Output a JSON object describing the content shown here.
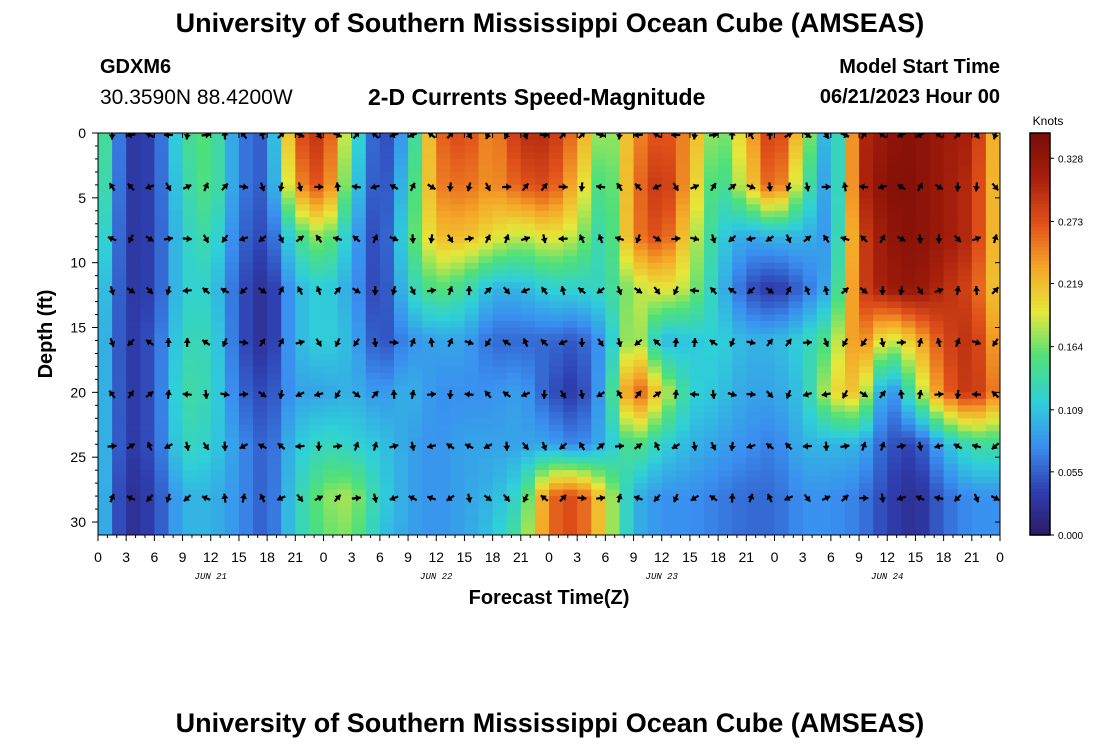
{
  "header": {
    "title": "University of Southern Mississippi Ocean Cube (AMSEAS)",
    "station_id": "GDXM6",
    "station_coords": "30.3590N  88.4200W",
    "product": "2-D Currents Speed-Magnitude",
    "model_start_label": "Model Start Time",
    "model_start_value": "06/21/2023 Hour 00"
  },
  "footer": {
    "title": "University of Southern Mississippi Ocean Cube (AMSEAS)"
  },
  "colors": {
    "stops": [
      "#2b1a66",
      "#2f3fb0",
      "#3a8ef0",
      "#2fd0d8",
      "#4fe07a",
      "#e6e83a",
      "#f5a628",
      "#e0501a",
      "#a8200c",
      "#7a0c06"
    ]
  },
  "chart_data": {
    "type": "heatmap",
    "title": "2-D Currents Speed-Magnitude",
    "xlabel": "Forecast Time(Z)",
    "ylabel": "Depth (ft)",
    "x_hours": [
      0,
      3,
      6,
      9,
      12,
      15,
      18,
      21,
      24,
      27,
      30,
      33,
      36,
      39,
      42,
      45,
      48,
      51,
      54,
      57,
      60,
      63,
      66,
      69,
      72,
      75,
      78,
      81,
      84,
      87,
      90,
      93,
      96
    ],
    "x_tick_labels": [
      "0",
      "3",
      "6",
      "9",
      "12",
      "15",
      "18",
      "21",
      "0",
      "3",
      "6",
      "9",
      "12",
      "15",
      "18",
      "21",
      "0",
      "3",
      "6",
      "9",
      "12",
      "15",
      "18",
      "21",
      "0",
      "3",
      "6",
      "9",
      "12",
      "15",
      "18",
      "21",
      "0"
    ],
    "xlim": [
      0,
      96
    ],
    "y_ticks": [
      0,
      5,
      10,
      15,
      20,
      25,
      30
    ],
    "y_tick_labels": [
      "0",
      "5",
      "10",
      "15",
      "20",
      "25",
      "30"
    ],
    "ylim": [
      31,
      0
    ],
    "day_labels": [
      {
        "label": "JUN 21",
        "hour": 12
      },
      {
        "label": "JUN 22",
        "hour": 36
      },
      {
        "label": "JUN 23",
        "hour": 60
      },
      {
        "label": "JUN 24",
        "hour": 84
      }
    ],
    "colorbar": {
      "units": "Knots",
      "min": 0.0,
      "max": 0.35,
      "ticks": [
        0.0,
        0.055,
        0.109,
        0.164,
        0.219,
        0.273,
        0.328
      ],
      "tick_labels": [
        "0.000",
        "0.055",
        "0.109",
        "0.164",
        "0.219",
        "0.273",
        "0.328"
      ]
    },
    "grid_hours": [
      0,
      3,
      6,
      9,
      12,
      15,
      18,
      21,
      24,
      27,
      30,
      33,
      36,
      39,
      42,
      45,
      48,
      51,
      54,
      57,
      60,
      63,
      66,
      69,
      72,
      75,
      78,
      81,
      84,
      87,
      90,
      93,
      96
    ],
    "grid_depths": [
      0,
      4,
      8,
      12,
      16,
      20,
      24,
      28,
      31
    ],
    "speed": [
      [
        0.18,
        0.03,
        0.04,
        0.14,
        0.16,
        0.07,
        0.05,
        0.27,
        0.3,
        0.15,
        0.03,
        0.1,
        0.26,
        0.28,
        0.24,
        0.3,
        0.3,
        0.25,
        0.15,
        0.24,
        0.28,
        0.24,
        0.15,
        0.22,
        0.3,
        0.2,
        0.07,
        0.3,
        0.33,
        0.34,
        0.32,
        0.31,
        0.2
      ],
      [
        0.17,
        0.03,
        0.04,
        0.13,
        0.16,
        0.07,
        0.05,
        0.24,
        0.28,
        0.13,
        0.03,
        0.12,
        0.25,
        0.26,
        0.24,
        0.27,
        0.28,
        0.22,
        0.13,
        0.25,
        0.3,
        0.23,
        0.13,
        0.2,
        0.28,
        0.16,
        0.07,
        0.3,
        0.34,
        0.34,
        0.32,
        0.3,
        0.2
      ],
      [
        0.15,
        0.03,
        0.04,
        0.12,
        0.14,
        0.06,
        0.04,
        0.14,
        0.18,
        0.1,
        0.03,
        0.14,
        0.22,
        0.22,
        0.2,
        0.18,
        0.2,
        0.18,
        0.12,
        0.25,
        0.28,
        0.2,
        0.12,
        0.09,
        0.1,
        0.1,
        0.08,
        0.28,
        0.33,
        0.34,
        0.32,
        0.3,
        0.2
      ],
      [
        0.13,
        0.03,
        0.04,
        0.12,
        0.12,
        0.05,
        0.02,
        0.1,
        0.12,
        0.09,
        0.03,
        0.12,
        0.16,
        0.14,
        0.1,
        0.1,
        0.12,
        0.12,
        0.13,
        0.18,
        0.2,
        0.18,
        0.11,
        0.05,
        0.03,
        0.06,
        0.1,
        0.28,
        0.32,
        0.33,
        0.3,
        0.28,
        0.2
      ],
      [
        0.12,
        0.03,
        0.05,
        0.13,
        0.13,
        0.05,
        0.02,
        0.1,
        0.12,
        0.1,
        0.04,
        0.08,
        0.09,
        0.09,
        0.06,
        0.06,
        0.06,
        0.05,
        0.09,
        0.2,
        0.1,
        0.11,
        0.12,
        0.1,
        0.1,
        0.12,
        0.16,
        0.26,
        0.18,
        0.22,
        0.28,
        0.3,
        0.22
      ],
      [
        0.12,
        0.03,
        0.05,
        0.14,
        0.13,
        0.06,
        0.04,
        0.09,
        0.09,
        0.1,
        0.08,
        0.1,
        0.08,
        0.08,
        0.08,
        0.09,
        0.05,
        0.03,
        0.1,
        0.28,
        0.2,
        0.12,
        0.11,
        0.09,
        0.09,
        0.11,
        0.2,
        0.22,
        0.06,
        0.16,
        0.26,
        0.3,
        0.24
      ],
      [
        0.12,
        0.03,
        0.05,
        0.13,
        0.12,
        0.08,
        0.05,
        0.11,
        0.13,
        0.12,
        0.11,
        0.09,
        0.08,
        0.09,
        0.09,
        0.09,
        0.09,
        0.07,
        0.1,
        0.16,
        0.12,
        0.1,
        0.09,
        0.08,
        0.07,
        0.1,
        0.1,
        0.1,
        0.05,
        0.04,
        0.1,
        0.14,
        0.14
      ],
      [
        0.12,
        0.02,
        0.04,
        0.1,
        0.1,
        0.08,
        0.05,
        0.12,
        0.17,
        0.18,
        0.12,
        0.09,
        0.08,
        0.09,
        0.1,
        0.13,
        0.26,
        0.28,
        0.2,
        0.1,
        0.08,
        0.08,
        0.07,
        0.06,
        0.06,
        0.08,
        0.08,
        0.07,
        0.04,
        0.02,
        0.06,
        0.08,
        0.08
      ],
      [
        0.12,
        0.02,
        0.04,
        0.1,
        0.1,
        0.08,
        0.05,
        0.12,
        0.16,
        0.17,
        0.11,
        0.09,
        0.08,
        0.09,
        0.11,
        0.15,
        0.26,
        0.28,
        0.2,
        0.1,
        0.08,
        0.08,
        0.07,
        0.06,
        0.06,
        0.08,
        0.08,
        0.07,
        0.04,
        0.02,
        0.06,
        0.08,
        0.08
      ]
    ]
  }
}
